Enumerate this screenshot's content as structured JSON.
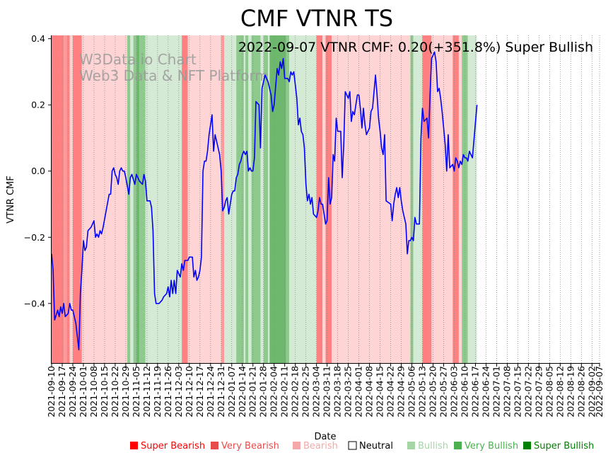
{
  "chart_data": {
    "type": "line",
    "title": "CMF VTNR TS",
    "annotation": "2022-09-07 VTNR CMF: 0.20(+351.8%) Super Bullish",
    "watermark_line1": "W3Data.io Chart",
    "watermark_line2": "Web3 Data & NFT Platform",
    "xlabel": "Date",
    "ylabel": "VTNR CMF",
    "ylim": [
      -0.58,
      0.41
    ],
    "yticks": [
      0.4,
      0.2,
      0.0,
      -0.2,
      -0.4
    ],
    "ytick_labels": [
      "0.4",
      "0.2",
      "0.0",
      "−0.2",
      "−0.4"
    ],
    "x_start": "2021-09-10",
    "x_end": "2022-09-07",
    "xtick_labels": [
      "2021-09-10",
      "2021-09-17",
      "2021-09-24",
      "2021-10-01",
      "2021-10-08",
      "2021-10-15",
      "2021-10-22",
      "2021-10-29",
      "2021-11-05",
      "2021-11-12",
      "2021-11-19",
      "2021-11-26",
      "2021-12-03",
      "2021-12-10",
      "2021-12-17",
      "2021-12-24",
      "2021-12-31",
      "2022-01-07",
      "2022-01-14",
      "2022-01-21",
      "2022-01-28",
      "2022-02-04",
      "2022-02-11",
      "2022-02-18",
      "2022-02-25",
      "2022-03-04",
      "2022-03-11",
      "2022-03-18",
      "2022-03-25",
      "2022-04-01",
      "2022-04-08",
      "2022-04-15",
      "2022-04-22",
      "2022-04-29",
      "2022-05-06",
      "2022-05-13",
      "2022-05-20",
      "2022-05-27",
      "2022-06-03",
      "2022-06-10",
      "2022-06-17",
      "2022-06-24",
      "2022-07-01",
      "2022-07-08",
      "2022-07-15",
      "2022-07-22",
      "2022-07-29",
      "2022-08-05",
      "2022-08-12",
      "2022-08-19",
      "2022-08-26",
      "2022-09-02",
      "2022-09-07"
    ],
    "series": [
      {
        "name": "VTNR CMF",
        "color": "#0000ff",
        "points": [
          [
            0,
            -0.25
          ],
          [
            1,
            -0.3
          ],
          [
            2,
            -0.45
          ],
          [
            4,
            -0.42
          ],
          [
            5,
            -0.44
          ],
          [
            6,
            -0.41
          ],
          [
            7,
            -0.43
          ],
          [
            8,
            -0.4
          ],
          [
            9,
            -0.44
          ],
          [
            11,
            -0.43
          ],
          [
            12,
            -0.4
          ],
          [
            13,
            -0.42
          ],
          [
            14,
            -0.42
          ],
          [
            16,
            -0.46
          ],
          [
            18,
            -0.54
          ],
          [
            19,
            -0.37
          ],
          [
            20,
            -0.3
          ],
          [
            21,
            -0.21
          ],
          [
            22,
            -0.24
          ],
          [
            23,
            -0.23
          ],
          [
            24,
            -0.18
          ],
          [
            26,
            -0.17
          ],
          [
            28,
            -0.15
          ],
          [
            29,
            -0.2
          ],
          [
            30,
            -0.19
          ],
          [
            31,
            -0.2
          ],
          [
            32,
            -0.18
          ],
          [
            33,
            -0.19
          ],
          [
            34,
            -0.17
          ],
          [
            36,
            -0.12
          ],
          [
            38,
            -0.07
          ],
          [
            39,
            -0.07
          ],
          [
            40,
            0.0
          ],
          [
            41,
            0.01
          ],
          [
            42,
            -0.01
          ],
          [
            43,
            -0.02
          ],
          [
            44,
            -0.04
          ],
          [
            45,
            0.0
          ],
          [
            46,
            0.01
          ],
          [
            47,
            0.0
          ],
          [
            48,
            0.0
          ],
          [
            49,
            -0.02
          ],
          [
            51,
            -0.07
          ],
          [
            52,
            -0.02
          ],
          [
            53,
            -0.01
          ],
          [
            55,
            -0.04
          ],
          [
            56,
            -0.01
          ],
          [
            58,
            -0.03
          ],
          [
            60,
            -0.04
          ],
          [
            61,
            -0.01
          ],
          [
            62,
            -0.03
          ],
          [
            63,
            -0.09
          ],
          [
            65,
            -0.09
          ],
          [
            66,
            -0.11
          ],
          [
            67,
            -0.18
          ],
          [
            68,
            -0.37
          ],
          [
            69,
            -0.4
          ],
          [
            71,
            -0.4
          ],
          [
            73,
            -0.39
          ],
          [
            74,
            -0.38
          ],
          [
            76,
            -0.37
          ],
          [
            77,
            -0.35
          ],
          [
            78,
            -0.38
          ],
          [
            79,
            -0.33
          ],
          [
            80,
            -0.37
          ],
          [
            81,
            -0.33
          ],
          [
            82,
            -0.37
          ],
          [
            83,
            -0.3
          ],
          [
            84,
            -0.31
          ],
          [
            85,
            -0.32
          ],
          [
            86,
            -0.28
          ],
          [
            87,
            -0.3
          ],
          [
            88,
            -0.27
          ],
          [
            90,
            -0.27
          ],
          [
            91,
            -0.26
          ],
          [
            93,
            -0.26
          ],
          [
            94,
            -0.32
          ],
          [
            95,
            -0.3
          ],
          [
            96,
            -0.33
          ],
          [
            97,
            -0.32
          ],
          [
            98,
            -0.3
          ],
          [
            99,
            -0.26
          ],
          [
            100,
            0.0
          ],
          [
            101,
            0.03
          ],
          [
            102,
            0.03
          ],
          [
            103,
            0.06
          ],
          [
            104,
            0.11
          ],
          [
            105,
            0.14
          ],
          [
            106,
            0.17
          ],
          [
            107,
            0.06
          ],
          [
            108,
            0.11
          ],
          [
            109,
            0.09
          ],
          [
            110,
            0.07
          ],
          [
            111,
            0.05
          ],
          [
            112,
            0.0
          ],
          [
            113,
            -0.12
          ],
          [
            114,
            -0.11
          ],
          [
            115,
            -0.09
          ],
          [
            116,
            -0.08
          ],
          [
            117,
            -0.13
          ],
          [
            118,
            -0.1
          ],
          [
            119,
            -0.07
          ],
          [
            120,
            -0.06
          ],
          [
            121,
            -0.06
          ],
          [
            122,
            -0.02
          ],
          [
            123,
            -0.01
          ],
          [
            124,
            0.02
          ],
          [
            125,
            0.03
          ],
          [
            126,
            0.05
          ],
          [
            127,
            0.06
          ],
          [
            128,
            0.05
          ],
          [
            129,
            0.06
          ],
          [
            130,
            0.0
          ],
          [
            131,
            0.01
          ],
          [
            132,
            0.0
          ],
          [
            133,
            0.0
          ],
          [
            134,
            0.04
          ],
          [
            135,
            0.21
          ],
          [
            137,
            0.2
          ],
          [
            138,
            0.07
          ],
          [
            139,
            0.25
          ],
          [
            140,
            0.27
          ],
          [
            141,
            0.29
          ],
          [
            143,
            0.27
          ],
          [
            145,
            0.23
          ],
          [
            146,
            0.18
          ],
          [
            147,
            0.2
          ],
          [
            149,
            0.31
          ],
          [
            150,
            0.29
          ],
          [
            151,
            0.33
          ],
          [
            152,
            0.31
          ],
          [
            153,
            0.34
          ],
          [
            154,
            0.28
          ],
          [
            156,
            0.28
          ],
          [
            157,
            0.27
          ],
          [
            158,
            0.3
          ],
          [
            159,
            0.29
          ],
          [
            160,
            0.3
          ],
          [
            161,
            0.26
          ],
          [
            162,
            0.22
          ],
          [
            163,
            0.14
          ],
          [
            164,
            0.16
          ],
          [
            165,
            0.12
          ],
          [
            166,
            0.11
          ],
          [
            167,
            0.07
          ],
          [
            168,
            -0.04
          ],
          [
            169,
            -0.09
          ],
          [
            170,
            -0.07
          ],
          [
            171,
            -0.1
          ],
          [
            172,
            -0.08
          ],
          [
            173,
            -0.13
          ],
          [
            175,
            -0.14
          ],
          [
            176,
            -0.12
          ],
          [
            177,
            -0.08
          ],
          [
            178,
            -0.1
          ],
          [
            179,
            -0.1
          ],
          [
            180,
            -0.13
          ],
          [
            181,
            -0.16
          ],
          [
            182,
            -0.15
          ],
          [
            183,
            -0.02
          ],
          [
            184,
            -0.1
          ],
          [
            185,
            -0.08
          ],
          [
            186,
            0.05
          ],
          [
            187,
            0.03
          ],
          [
            188,
            0.16
          ],
          [
            189,
            0.12
          ],
          [
            191,
            0.12
          ],
          [
            192,
            -0.02
          ],
          [
            193,
            0.08
          ],
          [
            194,
            0.24
          ],
          [
            195,
            0.23
          ],
          [
            196,
            0.22
          ],
          [
            197,
            0.24
          ],
          [
            198,
            0.15
          ],
          [
            199,
            0.18
          ],
          [
            200,
            0.17
          ],
          [
            201,
            0.2
          ],
          [
            202,
            0.23
          ],
          [
            203,
            0.23
          ],
          [
            204,
            0.19
          ],
          [
            205,
            0.13
          ],
          [
            206,
            0.19
          ],
          [
            207,
            0.14
          ],
          [
            208,
            0.11
          ],
          [
            209,
            0.12
          ],
          [
            210,
            0.13
          ],
          [
            211,
            0.18
          ],
          [
            212,
            0.19
          ],
          [
            213,
            0.24
          ],
          [
            214,
            0.29
          ],
          [
            215,
            0.23
          ],
          [
            216,
            0.16
          ],
          [
            217,
            0.12
          ],
          [
            218,
            0.07
          ],
          [
            219,
            0.05
          ],
          [
            220,
            0.11
          ],
          [
            221,
            -0.09
          ],
          [
            224,
            -0.1
          ],
          [
            225,
            -0.15
          ],
          [
            226,
            -0.1
          ],
          [
            227,
            -0.07
          ],
          [
            228,
            -0.05
          ],
          [
            229,
            -0.08
          ],
          [
            230,
            -0.05
          ],
          [
            231,
            -0.09
          ],
          [
            232,
            -0.12
          ],
          [
            234,
            -0.16
          ],
          [
            235,
            -0.25
          ],
          [
            236,
            -0.21
          ],
          [
            237,
            -0.21
          ],
          [
            238,
            -0.2
          ],
          [
            239,
            -0.21
          ],
          [
            240,
            -0.14
          ],
          [
            241,
            -0.16
          ],
          [
            243,
            -0.16
          ],
          [
            244,
            0.1
          ],
          [
            245,
            0.19
          ],
          [
            246,
            0.15
          ],
          [
            248,
            0.16
          ],
          [
            249,
            0.1
          ],
          [
            250,
            0.23
          ],
          [
            251,
            0.34
          ],
          [
            253,
            0.36
          ],
          [
            254,
            0.33
          ],
          [
            255,
            0.24
          ],
          [
            256,
            0.25
          ],
          [
            257,
            0.22
          ],
          [
            258,
            0.18
          ],
          [
            259,
            0.13
          ],
          [
            260,
            0.08
          ],
          [
            261,
            0.0
          ],
          [
            262,
            0.11
          ],
          [
            263,
            0.01
          ],
          [
            265,
            0.02
          ],
          [
            266,
            0.0
          ],
          [
            267,
            0.04
          ],
          [
            268,
            0.03
          ],
          [
            269,
            0.01
          ],
          [
            270,
            0.03
          ],
          [
            271,
            0.02
          ],
          [
            272,
            0.05
          ],
          [
            273,
            0.04
          ],
          [
            274,
            0.04
          ],
          [
            275,
            0.03
          ],
          [
            276,
            0.06
          ],
          [
            277,
            0.05
          ],
          [
            278,
            0.04
          ],
          [
            281,
            0.2
          ]
        ]
      }
    ],
    "band_colors": {
      "super_bearish": "#ff8080",
      "very_bearish": "#ff9999",
      "bearish": "#ffd4d4",
      "bullish": "#d5ead5",
      "very_bullish": "#8ec98e",
      "super_bullish": "#6db86d"
    },
    "bands": [
      [
        "super_bearish",
        0,
        8
      ],
      [
        "very_bearish",
        8,
        10
      ],
      [
        "super_bearish",
        10,
        12
      ],
      [
        "bearish",
        12,
        14
      ],
      [
        "super_bearish",
        14,
        20
      ],
      [
        "bearish",
        20,
        50
      ],
      [
        "very_bullish",
        50,
        52
      ],
      [
        "bullish",
        52,
        54
      ],
      [
        "very_bullish",
        54,
        56
      ],
      [
        "super_bullish",
        56,
        58
      ],
      [
        "very_bullish",
        58,
        62
      ],
      [
        "bullish",
        62,
        86
      ],
      [
        "super_bearish",
        86,
        90
      ],
      [
        "bearish",
        90,
        112
      ],
      [
        "very_bearish",
        112,
        114
      ],
      [
        "bullish",
        114,
        122
      ],
      [
        "very_bullish",
        122,
        127
      ],
      [
        "bullish",
        127,
        128
      ],
      [
        "very_bullish",
        128,
        130
      ],
      [
        "bullish",
        130,
        132
      ],
      [
        "very_bullish",
        132,
        138
      ],
      [
        "bullish",
        138,
        140
      ],
      [
        "very_bullish",
        140,
        143
      ],
      [
        "bullish",
        143,
        144
      ],
      [
        "super_bullish",
        144,
        155
      ],
      [
        "very_bullish",
        155,
        157
      ],
      [
        "bullish",
        157,
        175
      ],
      [
        "super_bearish",
        175,
        179
      ],
      [
        "bearish",
        179,
        181
      ],
      [
        "super_bearish",
        181,
        185
      ],
      [
        "bearish",
        185,
        237
      ],
      [
        "very_bullish",
        237,
        239
      ],
      [
        "bullish",
        239,
        245
      ],
      [
        "super_bearish",
        245,
        251
      ],
      [
        "bearish",
        251,
        265
      ],
      [
        "super_bearish",
        265,
        269
      ],
      [
        "bearish",
        269,
        271
      ],
      [
        "very_bullish",
        271,
        275
      ],
      [
        "bullish",
        275,
        281
      ]
    ],
    "legend": [
      {
        "label": "Super Bearish",
        "swatch": "#ff0000",
        "text_color": "#ff0000"
      },
      {
        "label": "Very Bearish",
        "swatch": "#e84b4b",
        "text_color": "#e84b4b"
      },
      {
        "label": "Bearish",
        "swatch": "#f5a8a8",
        "text_color": "#f5a8a8"
      },
      {
        "label": "Neutral",
        "swatch": "#ffffff",
        "text_color": "#000000"
      },
      {
        "label": "Bullish",
        "swatch": "#a6d6a6",
        "text_color": "#a6d6a6"
      },
      {
        "label": "Very Bullish",
        "swatch": "#4caf50",
        "text_color": "#4caf50"
      },
      {
        "label": "Super Bullish",
        "swatch": "#008000",
        "text_color": "#008000"
      }
    ]
  }
}
